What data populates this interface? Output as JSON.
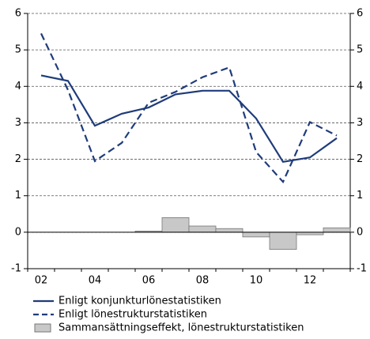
{
  "chart_data": {
    "type": "line",
    "categories": [
      "02",
      null,
      "04",
      null,
      "06",
      null,
      "08",
      null,
      "10",
      null,
      "12",
      null
    ],
    "series": [
      {
        "name": "Enligt konjunkturlönestatistiken",
        "type": "line",
        "color": "#1f3c7a",
        "dash": false,
        "values": [
          4.3,
          4.15,
          2.92,
          3.25,
          3.42,
          3.78,
          3.88,
          3.88,
          3.12,
          1.93,
          2.05,
          2.58
        ]
      },
      {
        "name": "Enligt lönestrukturstatistiken",
        "type": "line",
        "color": "#1f3c7a",
        "dash": true,
        "values": [
          5.45,
          3.9,
          1.95,
          2.45,
          3.55,
          3.85,
          4.25,
          4.52,
          2.2,
          1.38,
          3.02,
          2.65
        ]
      },
      {
        "name": "Sammansättningseffekt, lönestrukturstatistiken",
        "type": "bar",
        "color": "#c8c8c8",
        "values": [
          null,
          null,
          null,
          null,
          0.03,
          0.4,
          0.17,
          0.1,
          -0.13,
          -0.47,
          -0.07,
          0.12
        ]
      }
    ],
    "ylim": [
      -1,
      6
    ],
    "yticks": [
      -1,
      0,
      1,
      2,
      3,
      4,
      5,
      6
    ],
    "y2lim": [
      -1,
      6
    ],
    "y2ticks": [
      -1,
      0,
      1,
      2,
      3,
      4,
      5,
      6
    ],
    "grid": true,
    "legend": "bottom"
  }
}
